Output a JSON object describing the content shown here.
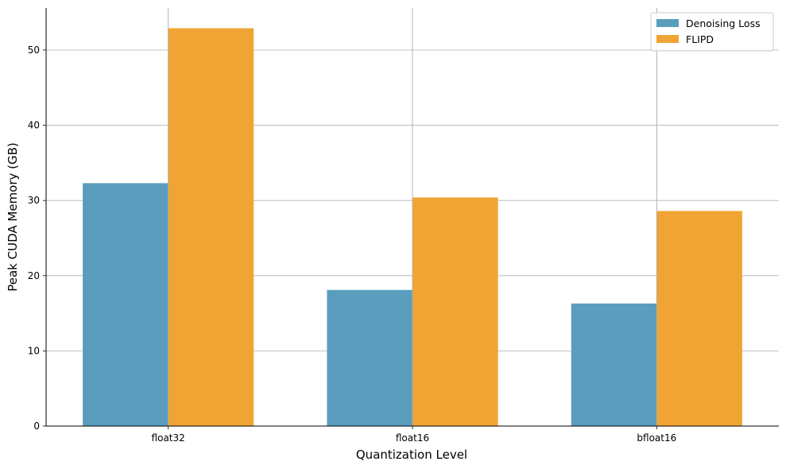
{
  "chart_data": {
    "type": "bar",
    "title": "",
    "xlabel": "Quantization Level",
    "ylabel": "Peak CUDA Memory (GB)",
    "categories": [
      "float32",
      "float16",
      "bfloat16"
    ],
    "series": [
      {
        "name": "Denoising Loss",
        "color": "#5a9dbd",
        "values": [
          32.3,
          18.1,
          16.3
        ]
      },
      {
        "name": "FLIPD",
        "color": "#f0a433",
        "values": [
          52.9,
          30.4,
          28.6
        ]
      }
    ],
    "ylim": [
      0,
      55.6
    ],
    "yticks": [
      0,
      10,
      20,
      30,
      40,
      50
    ],
    "grid": true,
    "legend_position": "top-right"
  }
}
